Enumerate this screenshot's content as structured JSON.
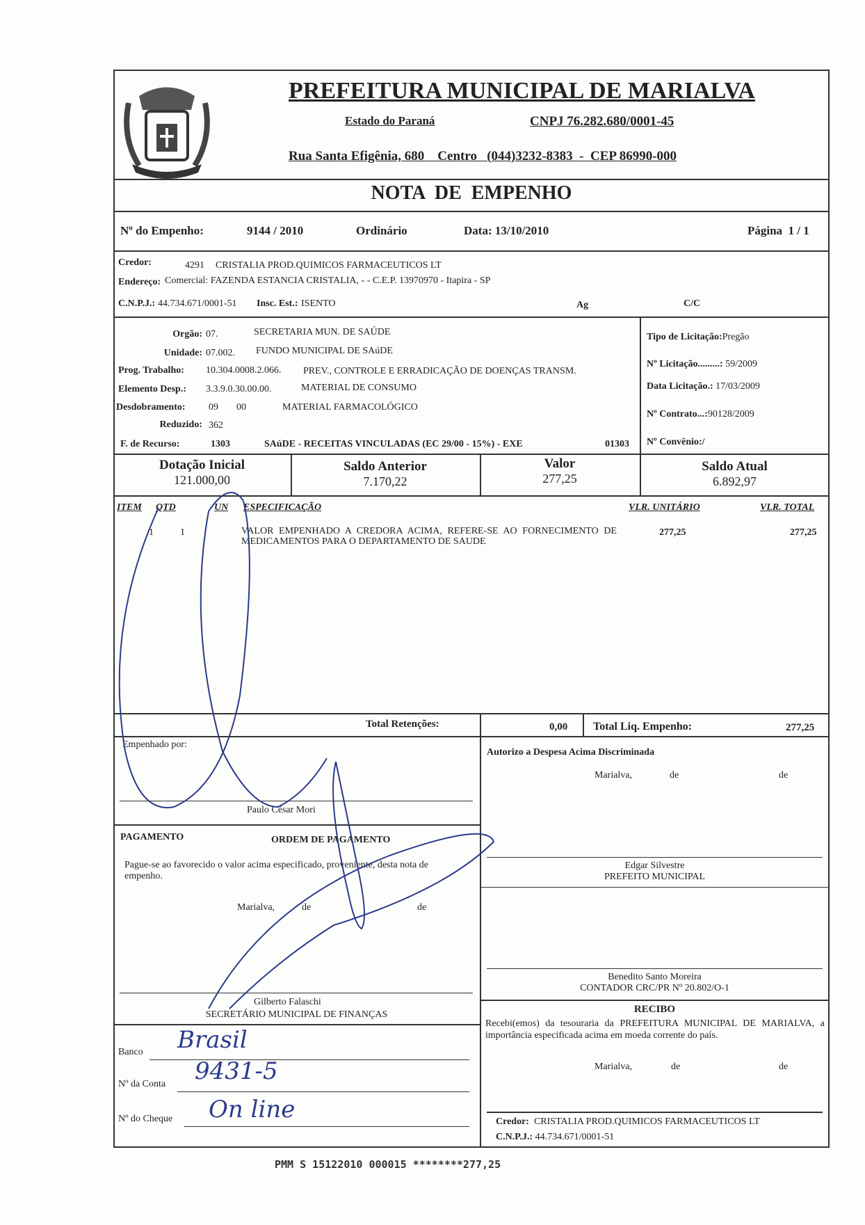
{
  "header": {
    "title": "PREFEITURA MUNICIPAL DE MARIALVA",
    "state": "Estado do Paraná",
    "cnpj": "CNPJ 76.282.680/0001-45",
    "address": "Rua Santa Efigênia, 680    Centro   (044)3232-8383  -  CEP 86990-000",
    "logo": "coat-of-arms-marialva"
  },
  "doc_title": "NOTA  DE  EMPENHO",
  "empenho": {
    "label": "Nº do Empenho:",
    "number": "9144 / 2010",
    "type": "Ordinário",
    "date": "Data: 13/10/2010",
    "page": "Página  1 / 1"
  },
  "credor": {
    "label": "Credor:",
    "code": "4291",
    "name": "CRISTALIA PROD.QUIMICOS FARMACEUTICOS LT",
    "address_label": "Endereço:",
    "address": "Comercial: FAZENDA ESTANCIA CRISTALIA, - - C.E.P. 13970970 - Itapira - SP",
    "cnpj_label": "C.N.P.J.:",
    "cnpj": "44.734.671/0001-51",
    "ie_label": "Insc. Est.:",
    "ie": "ISENTO",
    "ag_label": "Ag",
    "cc_label": "C/C"
  },
  "budget": {
    "orgao": {
      "label": "Orgão:",
      "code": "07.",
      "desc": "SECRETARIA MUN. DE SAÚDE"
    },
    "unidade": {
      "label": "Unidade:",
      "code": "07.002.",
      "desc": "FUNDO MUNICIPAL DE SAúDE"
    },
    "prog": {
      "label": "Prog. Trabalho:",
      "code": "10.304.0008.2.066.",
      "desc": "PREV., CONTROLE E ERRADICAÇÃO DE DOENÇAS TRANSM."
    },
    "elemento": {
      "label": "Elemento Desp.:",
      "code": "3.3.9.0.30.00.00.",
      "desc": "MATERIAL DE CONSUMO"
    },
    "desdobramento": {
      "label": "Desdobramento:",
      "code1": "09",
      "code2": "00",
      "desc": "MATERIAL FARMACOLÓGICO"
    },
    "reduzido": {
      "label": "Reduzido:",
      "code": "362"
    },
    "recurso": {
      "label": "F. de Recurso:",
      "code": "1303",
      "desc": "SAúDE - RECEITAS VINCULADAS (EC 29/00 - 15%) - EXE",
      "code2": "01303"
    }
  },
  "licitacao": {
    "tipo_label": "Tipo de Licitação:",
    "tipo": "Pregão",
    "num_label": "Nº Licitação.........:",
    "num": "59/2009",
    "data_label": "Data Licitação.:",
    "data": "17/03/2009",
    "contrato_label": "Nº Contrato...:",
    "contrato": "90128/2009",
    "convenio_label": "Nº Convênio:/"
  },
  "balances": [
    {
      "label": "Dotação Inicial",
      "value": "121.000,00"
    },
    {
      "label": "Saldo Anterior",
      "value": "7.170,22"
    },
    {
      "label": "Valor",
      "value": "277,25"
    },
    {
      "label": "Saldo Atual",
      "value": "6.892,97"
    }
  ],
  "items": {
    "headers": {
      "item": "ITEM",
      "qtd": "QTD",
      "un": "UN",
      "spec": "ESPECIFICAÇÃO",
      "unit": "VLR. UNITÁRIO",
      "total": "VLR. TOTAL"
    },
    "rows": [
      {
        "item": "1",
        "qtd": "1",
        "spec": "VALOR  EMPENHADO  A  CREDORA  ACIMA,  REFERE-SE  AO FORNECIMENTO DE MEDICAMENTOS PARA O DEPARTAMENTO  DE SAUDE",
        "unit": "277,25",
        "total": "277,25"
      }
    ]
  },
  "totals": {
    "ret_label": "Total Retenções:",
    "ret": "0,00",
    "liq_label": "Total Liq. Empenho:",
    "liq": "277,25"
  },
  "empenhado": {
    "label": "Empenhado por:",
    "signer": "Paulo César Mori"
  },
  "autorizo": {
    "label": "Autorizo a Despesa Acima Discriminada",
    "city": "Marialva,",
    "de1": "de",
    "de2": "de",
    "signer": "Edgar Silvestre",
    "role": "PREFEITO MUNICIPAL"
  },
  "pagamento": {
    "label": "PAGAMENTO",
    "ordem": "ORDEM DE PAGAMENTO",
    "text": "Pague-se ao favorecido o valor acima especificado, proveniente, desta nota de empenho.",
    "city": "Marialva,",
    "de1": "de",
    "de2": "de",
    "signer": "Gilberto Falaschi",
    "role": "SECRETÁRIO MUNICIPAL DE FINANÇAS"
  },
  "contador": {
    "signer": "Benedito Santo Moreira",
    "role": "CONTADOR CRC/PR Nº 20.802/O-1"
  },
  "bank": {
    "banco_label": "Banco",
    "banco": "Brasil",
    "conta_label": "Nº da Conta",
    "conta": "9431-5",
    "cheque_label": "Nº do Cheque",
    "cheque": "On line"
  },
  "recibo": {
    "title": "RECIBO",
    "text": "Recebi(emos) da tesouraria da PREFEITURA MUNICIPAL DE MARIALVA, a importância especificada acima em moeda corrente do país.",
    "city": "Marialva,",
    "de1": "de",
    "de2": "de",
    "credor_label": "Credor:",
    "credor": "CRISTALIA PROD.QUIMICOS FARMACEUTICOS LT",
    "cnpj_label": "C.N.P.J.:",
    "cnpj": "44.734.671/0001-51"
  },
  "footer": "PMM S 15122010 000015 ********277,25",
  "colors": {
    "ink": "#222222",
    "pen": "#2b3a8c"
  }
}
